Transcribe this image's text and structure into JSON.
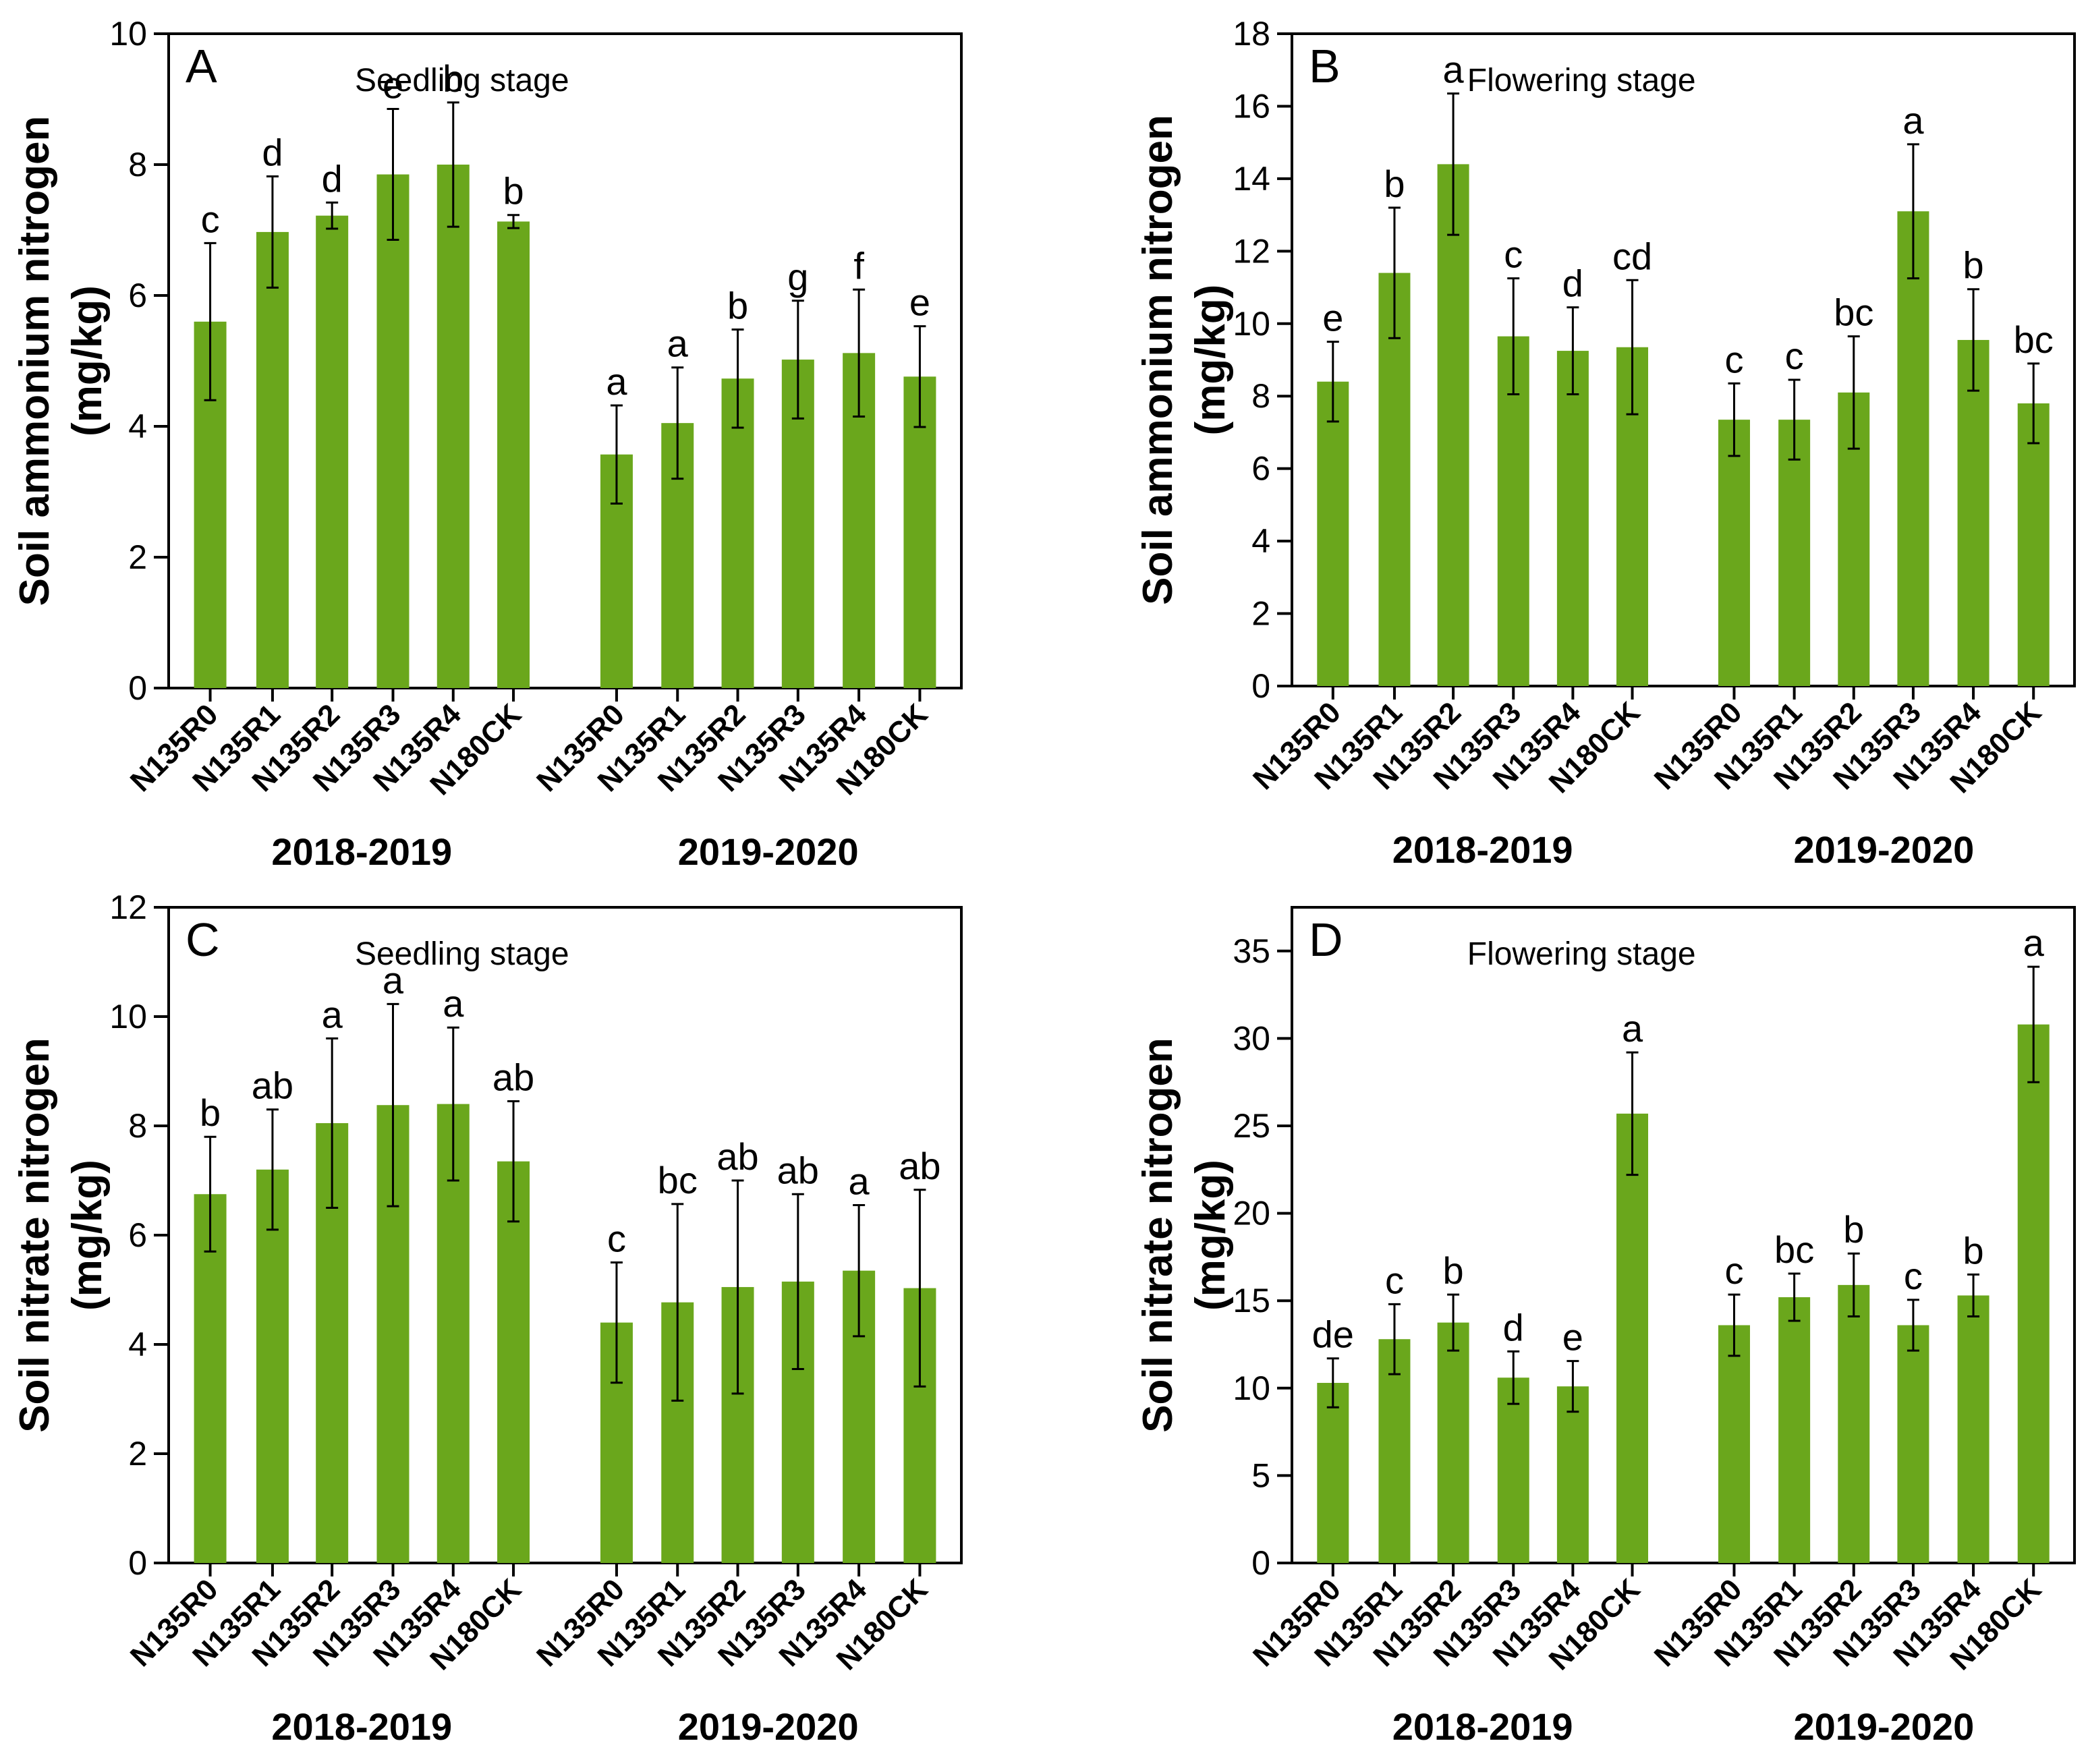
{
  "colors": {
    "bar": "#6aa71c",
    "axis": "#000000"
  },
  "chart_data": [
    {
      "type": "bar",
      "panel": "A",
      "stage": "Seedling stage",
      "ylabel_line1": "Soil ammonium nitrogen",
      "ylabel_line2": "(mg/kg)",
      "ylim": [
        0,
        10
      ],
      "yticks": [
        0,
        2,
        4,
        6,
        8,
        10
      ],
      "groups": [
        {
          "name": "2018-2019",
          "categories": [
            "N135R0",
            "N135R1",
            "N135R2",
            "N135R3",
            "N135R4",
            "N180CK"
          ],
          "values": [
            5.6,
            6.97,
            7.22,
            7.85,
            8.0,
            7.13
          ],
          "errors": [
            1.2,
            0.85,
            0.2,
            1.0,
            0.95,
            0.1
          ],
          "letters": [
            "c",
            "d",
            "d",
            "e",
            "b",
            "b"
          ]
        },
        {
          "name": "2019-2020",
          "categories": [
            "N135R0",
            "N135R1",
            "N135R2",
            "N135R3",
            "N135R4",
            "N180CK"
          ],
          "values": [
            3.57,
            4.05,
            4.73,
            5.02,
            5.12,
            4.76
          ],
          "errors": [
            0.75,
            0.85,
            0.75,
            0.9,
            0.97,
            0.77
          ],
          "letters": [
            "a",
            "a",
            "b",
            "g",
            "f",
            "e"
          ]
        }
      ]
    },
    {
      "type": "bar",
      "panel": "B",
      "stage": "Flowering stage",
      "ylabel_line1": "Soil ammonium nitrogen",
      "ylabel_line2": "(mg/kg)",
      "ylim": [
        0,
        18
      ],
      "yticks": [
        0,
        2,
        4,
        6,
        8,
        10,
        12,
        14,
        16,
        18
      ],
      "groups": [
        {
          "name": "2018-2019",
          "categories": [
            "N135R0",
            "N135R1",
            "N135R2",
            "N135R3",
            "N135R4",
            "N180CK"
          ],
          "values": [
            8.4,
            11.4,
            14.4,
            9.65,
            9.25,
            9.35
          ],
          "errors": [
            1.1,
            1.8,
            1.95,
            1.6,
            1.2,
            1.85
          ],
          "letters": [
            "e",
            "b",
            "a",
            "c",
            "d",
            "cd"
          ]
        },
        {
          "name": "2019-2020",
          "categories": [
            "N135R0",
            "N135R1",
            "N135R2",
            "N135R3",
            "N135R4",
            "N180CK"
          ],
          "values": [
            7.35,
            7.35,
            8.1,
            13.1,
            9.55,
            7.8
          ],
          "errors": [
            1.0,
            1.1,
            1.55,
            1.85,
            1.4,
            1.1
          ],
          "letters": [
            "c",
            "c",
            "bc",
            "a",
            "b",
            "bc"
          ]
        }
      ]
    },
    {
      "type": "bar",
      "panel": "C",
      "stage": "Seedling stage",
      "ylabel_line1": "Soil nitrate nitrogen",
      "ylabel_line2": "(mg/kg)",
      "ylim": [
        0,
        12
      ],
      "yticks": [
        0,
        2,
        4,
        6,
        8,
        10,
        12
      ],
      "groups": [
        {
          "name": "2018-2019",
          "categories": [
            "N135R0",
            "N135R1",
            "N135R2",
            "N135R3",
            "N135R4",
            "N180CK"
          ],
          "values": [
            6.75,
            7.2,
            8.05,
            8.38,
            8.4,
            7.35
          ],
          "errors": [
            1.05,
            1.1,
            1.55,
            1.85,
            1.4,
            1.1
          ],
          "letters": [
            "b",
            "ab",
            "a",
            "a",
            "a",
            "ab"
          ]
        },
        {
          "name": "2019-2020",
          "categories": [
            "N135R0",
            "N135R1",
            "N135R2",
            "N135R3",
            "N135R4",
            "N180CK"
          ],
          "values": [
            4.4,
            4.77,
            5.05,
            5.15,
            5.35,
            5.03
          ],
          "errors": [
            1.1,
            1.8,
            1.95,
            1.6,
            1.2,
            1.8
          ],
          "letters": [
            "c",
            "bc",
            "ab",
            "ab",
            "a",
            "ab"
          ]
        }
      ]
    },
    {
      "type": "bar",
      "panel": "D",
      "stage": "Flowering stage",
      "ylabel_line1": "Soil nitrate nitrogen",
      "ylabel_line2": "(mg/kg)",
      "ylim": [
        0,
        37.5
      ],
      "yticks": [
        0,
        5,
        10,
        15,
        20,
        25,
        30,
        35
      ],
      "groups": [
        {
          "name": "2018-2019",
          "categories": [
            "N135R0",
            "N135R1",
            "N135R2",
            "N135R3",
            "N135R4",
            "N180CK"
          ],
          "values": [
            10.3,
            12.8,
            13.75,
            10.6,
            10.1,
            25.7
          ],
          "errors": [
            1.4,
            2.0,
            1.6,
            1.5,
            1.45,
            3.5
          ],
          "letters": [
            "de",
            "c",
            "b",
            "d",
            "e",
            "a"
          ]
        },
        {
          "name": "2019-2020",
          "categories": [
            "N135R0",
            "N135R1",
            "N135R2",
            "N135R3",
            "N135R4",
            "N180CK"
          ],
          "values": [
            13.6,
            15.2,
            15.9,
            13.6,
            15.3,
            30.8
          ],
          "errors": [
            1.75,
            1.35,
            1.8,
            1.45,
            1.2,
            3.3
          ],
          "letters": [
            "c",
            "bc",
            "b",
            "c",
            "b",
            "a"
          ]
        }
      ]
    }
  ]
}
